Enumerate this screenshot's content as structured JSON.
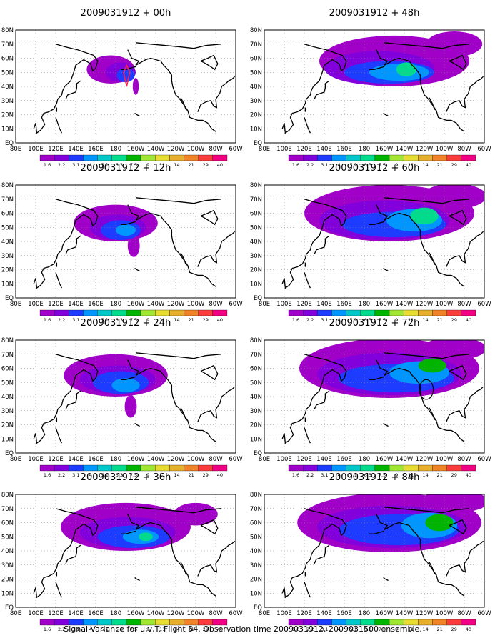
{
  "chart_data": {
    "type": "heatmap",
    "caption": "Signal Variance for u,v,T. Flight 54. Observation time 2009031912. 2009031500 ensemble.",
    "x_tick_labels": [
      "80E",
      "100E",
      "120E",
      "140E",
      "160E",
      "180",
      "160W",
      "140W",
      "120W",
      "100W",
      "80W",
      "60W"
    ],
    "y_tick_labels": [
      "EQ",
      "10N",
      "20N",
      "30N",
      "40N",
      "50N",
      "60N",
      "70N",
      "80N"
    ],
    "xlim": [
      "80E",
      "60W"
    ],
    "ylim": [
      "EQ",
      "80N"
    ],
    "colorbar": {
      "labels": [
        "1.6",
        "2.2",
        "3.1",
        "4",
        "5.1",
        "6.3",
        "7.5",
        "9",
        "11",
        "14",
        "21",
        "29",
        "40"
      ],
      "colors": [
        "#a000c8",
        "#8200dc",
        "#1e3cff",
        "#0096ff",
        "#00c8c8",
        "#00dc8c",
        "#00b400",
        "#a0e632",
        "#e6dc32",
        "#e6af2d",
        "#f08228",
        "#fa3c3c",
        "#f00082"
      ]
    },
    "panels": [
      {
        "title": "2009031912 + 00h",
        "lead_hours": 0,
        "blobs": [
          {
            "lon": 175,
            "lat": 52,
            "rx": 24,
            "ry": 10,
            "level": 0
          },
          {
            "lon": 185,
            "lat": 50,
            "rx": 15,
            "ry": 7,
            "level": 1
          },
          {
            "lon": 190,
            "lat": 48,
            "rx": 9,
            "ry": 5,
            "level": 2
          },
          {
            "lon": 200,
            "lat": 40,
            "rx": 3,
            "ry": 6,
            "level": 0
          }
        ]
      },
      {
        "title": "2009031912 + 48h",
        "lead_hours": 48,
        "blobs": [
          {
            "lon": 210,
            "lat": 58,
            "rx": 75,
            "ry": 18,
            "level": 0
          },
          {
            "lon": 270,
            "lat": 70,
            "rx": 28,
            "ry": 9,
            "level": 0
          },
          {
            "lon": 195,
            "lat": 53,
            "rx": 55,
            "ry": 12,
            "level": 1
          },
          {
            "lon": 205,
            "lat": 50,
            "rx": 45,
            "ry": 8,
            "level": 2
          },
          {
            "lon": 215,
            "lat": 50,
            "rx": 30,
            "ry": 6,
            "level": 3
          },
          {
            "lon": 222,
            "lat": 52,
            "rx": 10,
            "ry": 5,
            "level": 5
          }
        ]
      },
      {
        "title": "2009031912 + 12h",
        "lead_hours": 12,
        "blobs": [
          {
            "lon": 180,
            "lat": 53,
            "rx": 42,
            "ry": 13,
            "level": 0
          },
          {
            "lon": 198,
            "lat": 37,
            "rx": 6,
            "ry": 8,
            "level": 0
          },
          {
            "lon": 182,
            "lat": 50,
            "rx": 28,
            "ry": 9,
            "level": 1
          },
          {
            "lon": 185,
            "lat": 48,
            "rx": 20,
            "ry": 7,
            "level": 2
          },
          {
            "lon": 190,
            "lat": 48,
            "rx": 10,
            "ry": 4,
            "level": 3
          }
        ]
      },
      {
        "title": "2009031912 + 60h",
        "lead_hours": 60,
        "blobs": [
          {
            "lon": 205,
            "lat": 60,
            "rx": 85,
            "ry": 20,
            "level": 0
          },
          {
            "lon": 270,
            "lat": 72,
            "rx": 32,
            "ry": 9,
            "level": 0
          },
          {
            "lon": 200,
            "lat": 55,
            "rx": 65,
            "ry": 14,
            "level": 1
          },
          {
            "lon": 210,
            "lat": 52,
            "rx": 52,
            "ry": 9,
            "level": 2
          },
          {
            "lon": 230,
            "lat": 55,
            "rx": 28,
            "ry": 8,
            "level": 3
          },
          {
            "lon": 240,
            "lat": 58,
            "rx": 14,
            "ry": 6,
            "level": 5
          }
        ]
      },
      {
        "title": "2009031912 + 24h",
        "lead_hours": 24,
        "blobs": [
          {
            "lon": 180,
            "lat": 55,
            "rx": 52,
            "ry": 15,
            "level": 0
          },
          {
            "lon": 195,
            "lat": 33,
            "rx": 6,
            "ry": 8,
            "level": 0
          },
          {
            "lon": 182,
            "lat": 52,
            "rx": 38,
            "ry": 10,
            "level": 1
          },
          {
            "lon": 185,
            "lat": 50,
            "rx": 28,
            "ry": 8,
            "level": 2
          },
          {
            "lon": 190,
            "lat": 48,
            "rx": 14,
            "ry": 5,
            "level": 3
          }
        ]
      },
      {
        "title": "2009031912 + 72h",
        "lead_hours": 72,
        "blobs": [
          {
            "lon": 205,
            "lat": 60,
            "rx": 90,
            "ry": 21,
            "level": 0
          },
          {
            "lon": 270,
            "lat": 74,
            "rx": 32,
            "ry": 8,
            "level": 0
          },
          {
            "lon": 205,
            "lat": 56,
            "rx": 72,
            "ry": 15,
            "level": 1
          },
          {
            "lon": 212,
            "lat": 53,
            "rx": 58,
            "ry": 10,
            "level": 2
          },
          {
            "lon": 235,
            "lat": 57,
            "rx": 30,
            "ry": 8,
            "level": 3
          },
          {
            "lon": 248,
            "lat": 62,
            "rx": 14,
            "ry": 5,
            "level": 6
          }
        ]
      },
      {
        "title": "2009031912 + 36h",
        "lead_hours": 36,
        "blobs": [
          {
            "lon": 190,
            "lat": 57,
            "rx": 65,
            "ry": 17,
            "level": 0
          },
          {
            "lon": 260,
            "lat": 66,
            "rx": 22,
            "ry": 8,
            "level": 0
          },
          {
            "lon": 192,
            "lat": 53,
            "rx": 48,
            "ry": 11,
            "level": 1
          },
          {
            "lon": 198,
            "lat": 50,
            "rx": 36,
            "ry": 8,
            "level": 2
          },
          {
            "lon": 205,
            "lat": 50,
            "rx": 18,
            "ry": 5,
            "level": 3
          },
          {
            "lon": 210,
            "lat": 50,
            "rx": 7,
            "ry": 3,
            "level": 5
          }
        ]
      },
      {
        "title": "2009031912 + 84h",
        "lead_hours": 84,
        "blobs": [
          {
            "lon": 205,
            "lat": 60,
            "rx": 92,
            "ry": 21,
            "level": 0
          },
          {
            "lon": 270,
            "lat": 75,
            "rx": 34,
            "ry": 8,
            "level": 0
          },
          {
            "lon": 208,
            "lat": 57,
            "rx": 75,
            "ry": 15,
            "level": 1
          },
          {
            "lon": 215,
            "lat": 55,
            "rx": 60,
            "ry": 11,
            "level": 2
          },
          {
            "lon": 245,
            "lat": 58,
            "rx": 28,
            "ry": 9,
            "level": 3
          },
          {
            "lon": 255,
            "lat": 60,
            "rx": 14,
            "ry": 6,
            "level": 6
          }
        ]
      }
    ]
  }
}
